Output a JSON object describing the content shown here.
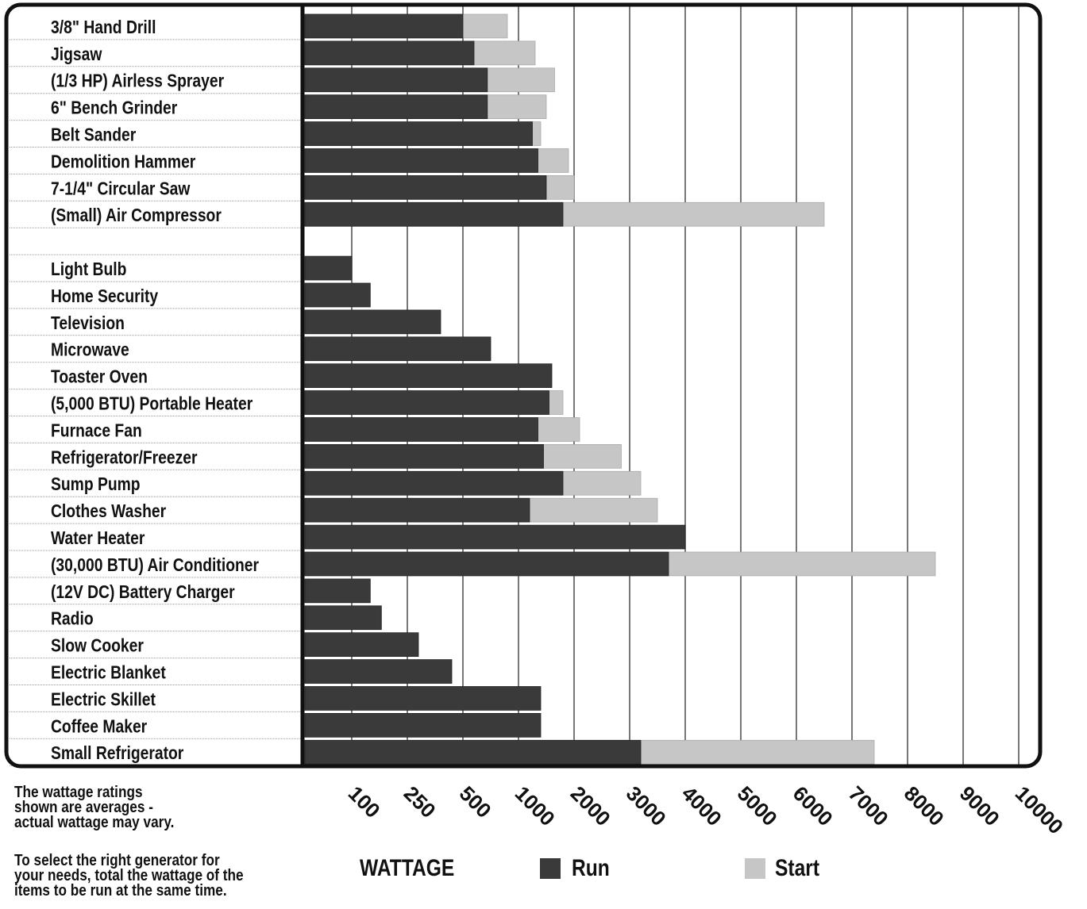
{
  "chart_data": {
    "type": "bar",
    "orientation": "horizontal",
    "stacked": false,
    "x_scale": "ordinal (non-linear tick spacing)",
    "x_ticks": [
      "100",
      "250",
      "500",
      "1000",
      "2000",
      "3000",
      "4000",
      "5000",
      "6000",
      "7000",
      "8000",
      "9000",
      "10000"
    ],
    "xlabel": "WATTAGE",
    "legend": [
      "Run",
      "Start"
    ],
    "legend_position": "bottom",
    "grid": "vertical",
    "colors": {
      "run": "#3a3a3a",
      "start": "#c6c6c6",
      "frame": "#111111"
    },
    "categories": [
      "3/8\" Hand Drill",
      "Jigsaw",
      "(1/3 HP) Airless Sprayer",
      "6\" Bench Grinder",
      "Belt Sander",
      "Demolition Hammer",
      "7-1/4\" Circular Saw",
      "(Small) Air Compressor",
      "",
      "Light Bulb",
      "Home Security",
      "Television",
      "Microwave",
      "Toaster Oven",
      "(5,000 BTU) Portable Heater",
      "Furnace Fan",
      "Refrigerator/Freezer",
      "Sump Pump",
      "Clothes Washer",
      "Water Heater",
      "(30,000 BTU) Air Conditioner",
      "(12V DC) Battery Charger",
      "Radio",
      "Slow Cooker",
      "Electric Blanket",
      "Electric Skillet",
      "Coffee Maker",
      "Small Refrigerator"
    ],
    "series": [
      {
        "name": "Run",
        "values": [
          500,
          600,
          720,
          720,
          1250,
          1350,
          1500,
          1800,
          null,
          100,
          150,
          400,
          750,
          1600,
          1550,
          1350,
          1450,
          1800,
          1200,
          4000,
          3700,
          150,
          180,
          300,
          450,
          1400,
          1400,
          3200
        ]
      },
      {
        "name": "Start",
        "values": [
          900,
          1300,
          1650,
          1500,
          1400,
          1900,
          2000,
          6500,
          null,
          null,
          null,
          null,
          null,
          null,
          1800,
          2100,
          2850,
          3200,
          3500,
          null,
          8500,
          null,
          null,
          null,
          null,
          null,
          null,
          7400
        ]
      }
    ]
  },
  "notes": {
    "line1": "The wattage ratings",
    "line2": "shown are averages -",
    "line3": "actual wattage may vary.",
    "line4": "To select the right generator for",
    "line5": "your needs, total the wattage of the",
    "line6": "items to be run at the same time."
  },
  "legend": {
    "wattage_label": "WATTAGE",
    "run_label": "Run",
    "start_label": "Start"
  }
}
